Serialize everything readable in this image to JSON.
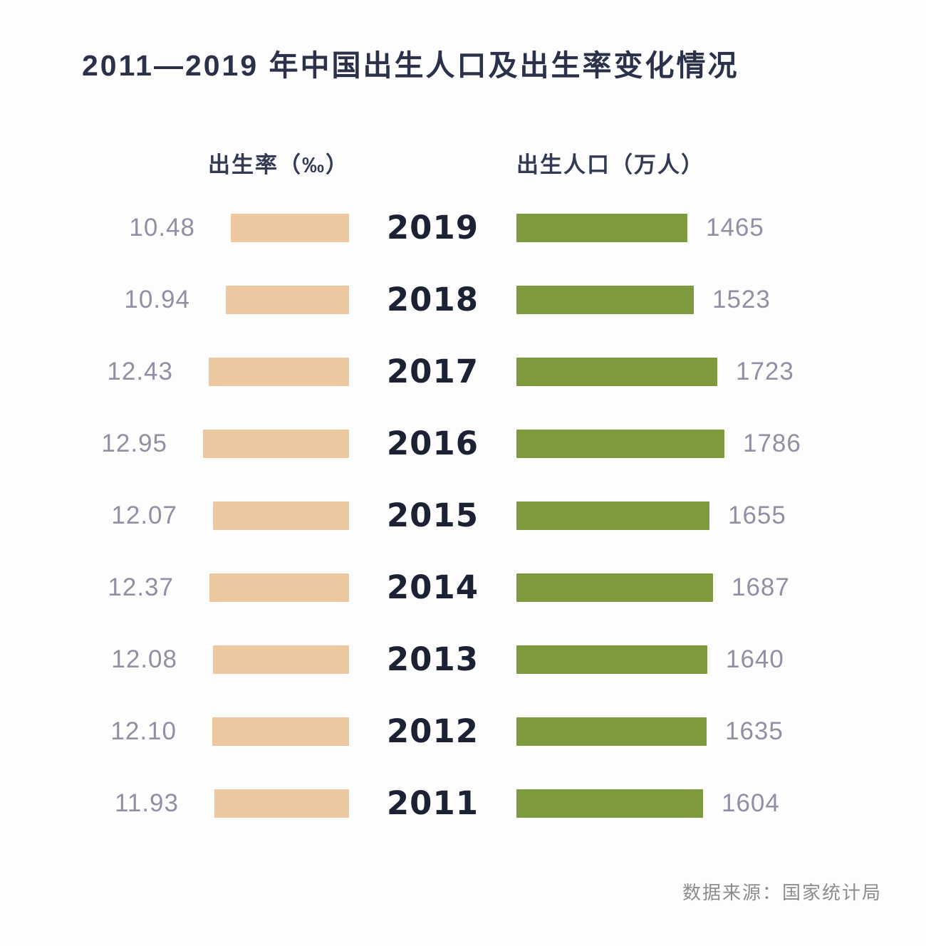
{
  "chart_data": {
    "type": "bar",
    "layout": "tornado",
    "title": "2011—2019 年中国出生人口及出生率变化情况",
    "categories": [
      "2019",
      "2018",
      "2017",
      "2016",
      "2015",
      "2014",
      "2013",
      "2012",
      "2011"
    ],
    "series": [
      {
        "name": "出生率（‰）",
        "side": "left",
        "color": "#edc79f",
        "values": [
          10.48,
          10.94,
          12.43,
          12.95,
          12.07,
          12.37,
          12.08,
          12.1,
          11.93
        ],
        "labels": [
          "10.48",
          "10.94",
          "12.43",
          "12.95",
          "12.07",
          "12.37",
          "12.08",
          "12.10",
          "11.93"
        ]
      },
      {
        "name": "出生人口（万人）",
        "side": "right",
        "color": "#7d9a3d",
        "values": [
          1465,
          1523,
          1723,
          1786,
          1655,
          1687,
          1640,
          1635,
          1604
        ],
        "labels": [
          "1465",
          "1523",
          "1723",
          "1786",
          "1655",
          "1687",
          "1640",
          "1635",
          "1604"
        ]
      }
    ],
    "source": "数据来源：国家统计局",
    "legend_position": "top",
    "grid": false,
    "colors": {
      "title": "#2b3149",
      "year_label": "#1c2133",
      "value_label": "#8f90a3",
      "left_bar": "#edc79f",
      "right_bar": "#7d9a3d",
      "source_text": "#8d8d8d",
      "background": "#fdfdfe"
    }
  }
}
